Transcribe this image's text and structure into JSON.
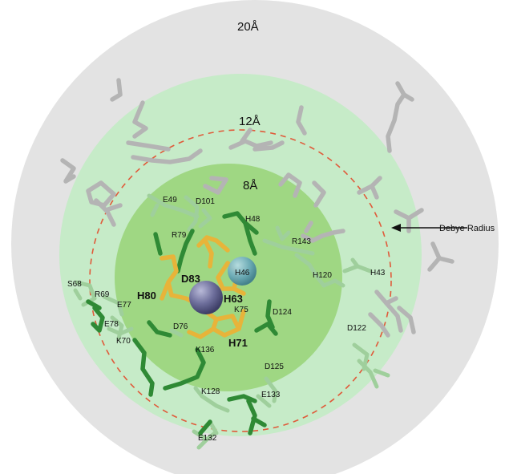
{
  "rings": {
    "outer_label": "20Å",
    "middle_label": "12Å",
    "inner_label": "8Å"
  },
  "annotation": {
    "debye_label": "Debye Radius"
  },
  "residues_bold": {
    "h80": "H80",
    "d83": "D83",
    "h63": "H63",
    "h71": "H71"
  },
  "residues": {
    "h48": "H48",
    "e49": "E49",
    "d101": "D101",
    "r79": "R79",
    "r143": "R143",
    "h46": "H46",
    "h120": "H120",
    "h43": "H43",
    "s68": "S68",
    "r69": "R69",
    "e77": "E77",
    "e78": "E78",
    "k75": "K75",
    "d124": "D124",
    "d76": "D76",
    "k70": "K70",
    "d122": "D122",
    "k136": "K136",
    "d125": "D125",
    "k128": "K128",
    "e133": "E133",
    "e132": "E132"
  },
  "colors": {
    "outer_shell": "#e3e3e3",
    "middle_shell": "#c6ebc8",
    "inner_shell": "#9fd783",
    "debye_circle": "#e05a3a",
    "metal_ion": "#6e6f9c",
    "water": "#6aa9b8",
    "stick_gray": "#b4b4b4",
    "stick_light_green": "#9fcf9c",
    "stick_dark_green": "#2f8a35",
    "stick_gold": "#e7b43a"
  }
}
